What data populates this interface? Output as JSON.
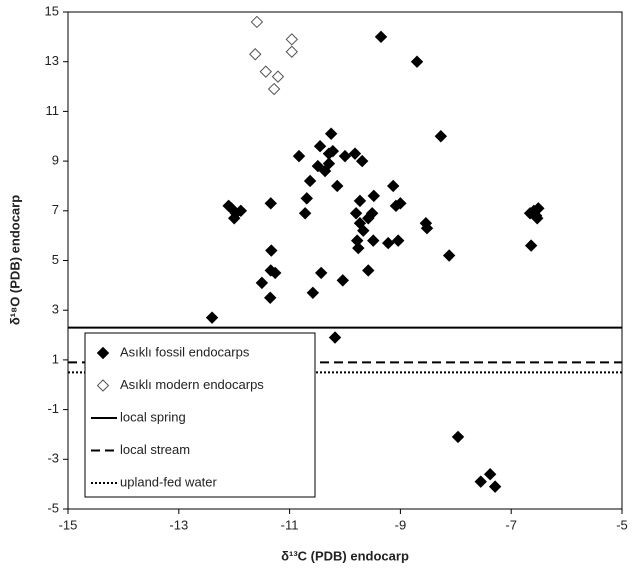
{
  "chart_data": {
    "type": "scatter",
    "xlabel": "δ¹³C (PDB) endocarp",
    "ylabel": "δ¹⁸O (PDB) endocarp",
    "xlim": [
      -15,
      -5
    ],
    "ylim": [
      -5,
      15
    ],
    "xticks": [
      -15,
      -13,
      -11,
      -9,
      -7,
      -5
    ],
    "yticks": [
      -5,
      -3,
      -1,
      1,
      3,
      5,
      7,
      9,
      11,
      13,
      15
    ],
    "legend": "lower left",
    "series": [
      {
        "name": "Asıklı fossil endocarps",
        "color": "#000000",
        "marker": "filled-diamond",
        "x": [
          -9.35,
          -8.7,
          -8.27,
          -12.4,
          -10.18,
          -7.96,
          -7.55,
          -7.38,
          -7.29,
          -12.1,
          -12.05,
          -11.97,
          -12.0,
          -11.88,
          -11.34,
          -11.33,
          -11.34,
          -11.26,
          -11.5,
          -11.35,
          -10.58,
          -10.43,
          -10.04,
          -10.83,
          -10.69,
          -10.72,
          -10.63,
          -10.45,
          -10.49,
          -10.36,
          -10.29,
          -10.25,
          -10.29,
          -10.22,
          -10.14,
          -10.0,
          -9.82,
          -9.69,
          -9.8,
          -9.73,
          -9.73,
          -9.78,
          -9.76,
          -9.67,
          -9.58,
          -9.51,
          -9.48,
          -9.49,
          -9.58,
          -9.22,
          -9.04,
          -9.13,
          -9.08,
          -9.0,
          -8.54,
          -8.52,
          -8.12,
          -6.66,
          -6.59,
          -6.55,
          -6.51,
          -6.53,
          -6.64
        ],
        "values": [
          14.0,
          13.0,
          10.0,
          2.7,
          1.9,
          -2.1,
          -3.9,
          -3.6,
          -4.1,
          7.2,
          7.1,
          6.9,
          6.7,
          7.0,
          7.3,
          5.4,
          4.6,
          4.5,
          4.1,
          3.5,
          3.7,
          4.5,
          4.2,
          9.2,
          7.5,
          6.9,
          8.2,
          9.6,
          8.8,
          8.6,
          8.9,
          10.1,
          9.3,
          9.4,
          8.0,
          9.2,
          9.3,
          9.0,
          6.9,
          7.4,
          6.5,
          5.8,
          5.5,
          6.2,
          6.7,
          6.9,
          7.6,
          5.8,
          4.6,
          5.7,
          5.8,
          8.0,
          7.2,
          7.3,
          6.5,
          6.3,
          5.2,
          6.9,
          7.0,
          6.8,
          7.1,
          6.7,
          5.6
        ]
      },
      {
        "name": "Asıklı modern endocarps",
        "color": "#555555",
        "marker": "open-diamond",
        "x": [
          -11.59,
          -11.62,
          -11.43,
          -11.21,
          -11.28,
          -10.96,
          -10.96
        ],
        "values": [
          14.6,
          13.3,
          12.6,
          12.4,
          11.9,
          13.9,
          13.4
        ]
      }
    ],
    "hlines": [
      {
        "name": "local spring",
        "value": 2.3,
        "style": "solid"
      },
      {
        "name": "local stream",
        "value": 0.9,
        "style": "dashed"
      },
      {
        "name": "upland-fed water",
        "value": 0.5,
        "style": "dotted"
      }
    ]
  }
}
